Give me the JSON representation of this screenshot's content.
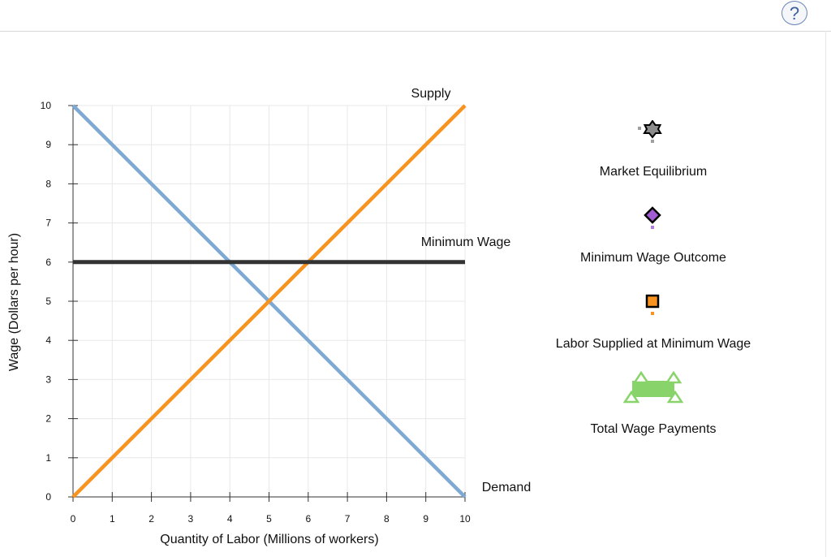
{
  "help": {
    "label": "?"
  },
  "chart_data": {
    "type": "line",
    "xlabel": "Quantity of Labor   (Millions of workers)",
    "ylabel": "Wage (Dollars per hour)",
    "xlim": [
      0,
      10
    ],
    "ylim": [
      0,
      10
    ],
    "x_ticks": [
      "0",
      "1",
      "2",
      "3",
      "4",
      "5",
      "6",
      "7",
      "8",
      "9",
      "10"
    ],
    "y_ticks": [
      "0",
      "1",
      "2",
      "3",
      "4",
      "5",
      "6",
      "7",
      "8",
      "9",
      "10"
    ],
    "grid": true,
    "series": [
      {
        "name": "Demand",
        "color": "#7ea9d3",
        "x": [
          0,
          10
        ],
        "y": [
          10,
          0
        ]
      },
      {
        "name": "Supply",
        "color": "#f7931e",
        "x": [
          0,
          10
        ],
        "y": [
          0,
          10
        ]
      },
      {
        "name": "Minimum Wage",
        "color": "#333333",
        "x": [
          0,
          10
        ],
        "y": [
          6,
          6
        ]
      }
    ]
  },
  "legend": {
    "items": [
      {
        "label": "Market Equilibrium",
        "icon": "star-marker-icon",
        "color": "#808080"
      },
      {
        "label": "Minimum Wage Outcome",
        "icon": "diamond-marker-icon",
        "color": "#a15bd3"
      },
      {
        "label": "Labor Supplied at Minimum Wage",
        "icon": "square-marker-icon",
        "color": "#f7931e"
      },
      {
        "label": "Total Wage Payments",
        "icon": "polygon-tool-icon",
        "color": "#88d46a"
      }
    ]
  }
}
